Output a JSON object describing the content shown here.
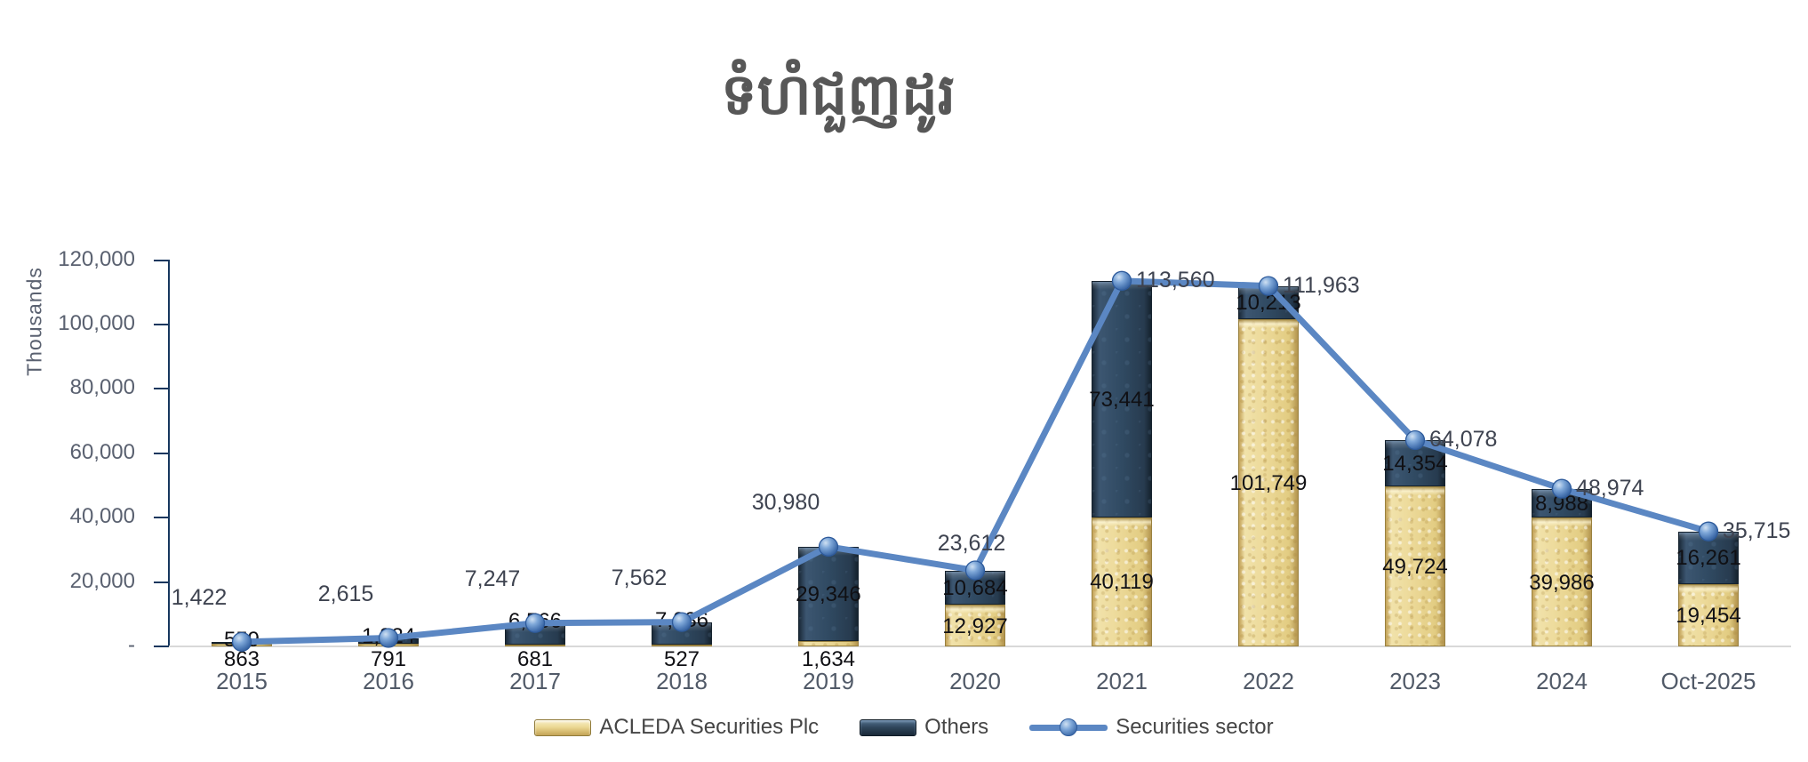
{
  "chart_data": {
    "type": "bar",
    "subtype": "stacked-bars-with-line-overlay",
    "title": "ទំហំជួញដូរ",
    "categories": [
      "2015",
      "2016",
      "2017",
      "2018",
      "2019",
      "2020",
      "2021",
      "2022",
      "2023",
      "2024",
      "Oct-2025"
    ],
    "series": [
      {
        "name": "ACLEDA Securities Plc",
        "type": "bar",
        "color": "#E7D28F",
        "values": [
          863,
          791,
          681,
          527,
          1634,
          12927,
          40119,
          101749,
          49724,
          39986,
          19454
        ]
      },
      {
        "name": "Others",
        "type": "bar",
        "color": "#2E4459",
        "values": [
          559,
          1824,
          6566,
          7036,
          29346,
          10684,
          73441,
          10213,
          14354,
          8988,
          16261
        ]
      },
      {
        "name": "Securities sector",
        "type": "line",
        "color": "#5B87C3",
        "values": [
          1422,
          2615,
          7247,
          7562,
          30980,
          23612,
          113560,
          111963,
          64078,
          48974,
          35715
        ]
      }
    ],
    "ylabel": "Thousands",
    "xlabel": "",
    "ylim": [
      0,
      120000
    ],
    "y_ticks": {
      "values": [
        120000,
        100000,
        80000,
        60000,
        40000,
        20000,
        0
      ],
      "labels": [
        "120,000",
        "100,000",
        "80,000",
        "60,000",
        "40,000",
        "20,000",
        "-"
      ]
    },
    "grid": false,
    "legend_position": "bottom",
    "line_label_positions": [
      "above-left",
      "above-left",
      "above-left",
      "above-left",
      "above-left",
      "above",
      "right",
      "right",
      "right",
      "right",
      "right"
    ]
  }
}
